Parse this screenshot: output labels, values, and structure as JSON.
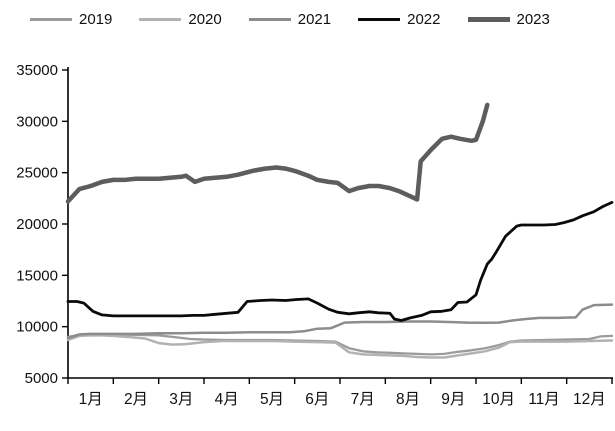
{
  "chart_data": {
    "type": "line",
    "title": "",
    "xlabel": "",
    "ylabel": "",
    "grid": false,
    "legend_position": "top",
    "x_categories": [
      "1月",
      "2月",
      "3月",
      "4月",
      "5月",
      "6月",
      "7月",
      "8月",
      "9月",
      "10月",
      "11月",
      "12月"
    ],
    "y_axis": {
      "min": 5000,
      "max": 35000,
      "tick_step": 5000,
      "ticks": [
        5000,
        10000,
        15000,
        20000,
        25000,
        30000,
        35000
      ]
    },
    "axis_color": "#000000",
    "text_color": "#111111",
    "series": [
      {
        "name": "2019",
        "color": "#9b9b9b",
        "width": 2.3,
        "points": [
          [
            0,
            9000
          ],
          [
            0.25,
            9200
          ],
          [
            0.5,
            9250
          ],
          [
            0.75,
            9250
          ],
          [
            1,
            9250
          ],
          [
            1.5,
            9200
          ],
          [
            2,
            9150
          ],
          [
            2.4,
            8950
          ],
          [
            2.7,
            8800
          ],
          [
            3,
            8750
          ],
          [
            3.5,
            8700
          ],
          [
            4,
            8700
          ],
          [
            4.5,
            8700
          ],
          [
            5,
            8650
          ],
          [
            5.5,
            8600
          ],
          [
            5.9,
            8550
          ],
          [
            6.2,
            7900
          ],
          [
            6.5,
            7600
          ],
          [
            6.8,
            7500
          ],
          [
            7.1,
            7450
          ],
          [
            7.4,
            7400
          ],
          [
            7.7,
            7350
          ],
          [
            8,
            7300
          ],
          [
            8.3,
            7350
          ],
          [
            8.6,
            7550
          ],
          [
            8.9,
            7700
          ],
          [
            9.2,
            7900
          ],
          [
            9.5,
            8200
          ],
          [
            9.75,
            8550
          ],
          [
            10,
            8650
          ],
          [
            10.5,
            8700
          ],
          [
            11,
            8750
          ],
          [
            11.5,
            8800
          ],
          [
            11.75,
            9050
          ],
          [
            12,
            9100
          ]
        ]
      },
      {
        "name": "2020",
        "color": "#b2b2b2",
        "width": 2.5,
        "points": [
          [
            0,
            8700
          ],
          [
            0.25,
            9100
          ],
          [
            0.5,
            9150
          ],
          [
            0.75,
            9150
          ],
          [
            1,
            9100
          ],
          [
            1.3,
            9000
          ],
          [
            1.7,
            8850
          ],
          [
            2,
            8400
          ],
          [
            2.3,
            8250
          ],
          [
            2.6,
            8300
          ],
          [
            3,
            8500
          ],
          [
            3.4,
            8600
          ],
          [
            4,
            8600
          ],
          [
            4.5,
            8600
          ],
          [
            5,
            8550
          ],
          [
            5.5,
            8500
          ],
          [
            5.9,
            8450
          ],
          [
            6.2,
            7500
          ],
          [
            6.5,
            7300
          ],
          [
            6.8,
            7250
          ],
          [
            7.1,
            7200
          ],
          [
            7.4,
            7150
          ],
          [
            7.7,
            7050
          ],
          [
            8,
            7000
          ],
          [
            8.3,
            7000
          ],
          [
            8.6,
            7200
          ],
          [
            8.9,
            7400
          ],
          [
            9.2,
            7600
          ],
          [
            9.5,
            7950
          ],
          [
            9.75,
            8500
          ],
          [
            10,
            8550
          ],
          [
            10.5,
            8550
          ],
          [
            11,
            8550
          ],
          [
            11.5,
            8600
          ],
          [
            12,
            8650
          ]
        ]
      },
      {
        "name": "2021",
        "color": "#8c8c8c",
        "width": 2.5,
        "points": [
          [
            0,
            8900
          ],
          [
            0.25,
            9250
          ],
          [
            0.5,
            9300
          ],
          [
            1,
            9300
          ],
          [
            1.5,
            9300
          ],
          [
            2,
            9350
          ],
          [
            2.5,
            9350
          ],
          [
            3,
            9400
          ],
          [
            3.5,
            9400
          ],
          [
            4,
            9450
          ],
          [
            4.5,
            9450
          ],
          [
            4.9,
            9450
          ],
          [
            5.2,
            9550
          ],
          [
            5.5,
            9800
          ],
          [
            5.8,
            9850
          ],
          [
            6.1,
            10400
          ],
          [
            6.5,
            10450
          ],
          [
            7,
            10450
          ],
          [
            7.5,
            10500
          ],
          [
            8,
            10500
          ],
          [
            8.4,
            10450
          ],
          [
            8.8,
            10400
          ],
          [
            9.2,
            10380
          ],
          [
            9.5,
            10400
          ],
          [
            9.8,
            10600
          ],
          [
            10.1,
            10750
          ],
          [
            10.4,
            10850
          ],
          [
            10.8,
            10850
          ],
          [
            11.2,
            10900
          ],
          [
            11.35,
            11650
          ],
          [
            11.6,
            12100
          ],
          [
            12,
            12150
          ]
        ]
      },
      {
        "name": "2022",
        "color": "#0a0a0a",
        "width": 2.8,
        "points": [
          [
            0,
            12450
          ],
          [
            0.2,
            12450
          ],
          [
            0.35,
            12300
          ],
          [
            0.55,
            11500
          ],
          [
            0.75,
            11150
          ],
          [
            1,
            11050
          ],
          [
            1.5,
            11050
          ],
          [
            2,
            11050
          ],
          [
            2.5,
            11050
          ],
          [
            2.75,
            11100
          ],
          [
            3,
            11100
          ],
          [
            3.25,
            11200
          ],
          [
            3.5,
            11300
          ],
          [
            3.75,
            11400
          ],
          [
            3.95,
            12450
          ],
          [
            4.1,
            12500
          ],
          [
            4.25,
            12550
          ],
          [
            4.5,
            12600
          ],
          [
            4.8,
            12550
          ],
          [
            5.05,
            12650
          ],
          [
            5.3,
            12700
          ],
          [
            5.5,
            12300
          ],
          [
            5.75,
            11700
          ],
          [
            5.95,
            11400
          ],
          [
            6.2,
            11250
          ],
          [
            6.4,
            11350
          ],
          [
            6.65,
            11450
          ],
          [
            6.85,
            11350
          ],
          [
            7.1,
            11300
          ],
          [
            7.2,
            10750
          ],
          [
            7.35,
            10600
          ],
          [
            7.55,
            10850
          ],
          [
            7.8,
            11100
          ],
          [
            8,
            11450
          ],
          [
            8.25,
            11500
          ],
          [
            8.45,
            11650
          ],
          [
            8.6,
            12350
          ],
          [
            8.8,
            12400
          ],
          [
            9,
            13100
          ],
          [
            9.1,
            14500
          ],
          [
            9.25,
            16100
          ],
          [
            9.35,
            16600
          ],
          [
            9.45,
            17300
          ],
          [
            9.65,
            18800
          ],
          [
            9.9,
            19800
          ],
          [
            10,
            19900
          ],
          [
            10.25,
            19900
          ],
          [
            10.5,
            19900
          ],
          [
            10.75,
            19950
          ],
          [
            10.95,
            20150
          ],
          [
            11.15,
            20400
          ],
          [
            11.35,
            20800
          ],
          [
            11.6,
            21200
          ],
          [
            11.8,
            21700
          ],
          [
            12,
            22100
          ]
        ]
      },
      {
        "name": "2023",
        "color": "#5d5d5d",
        "width": 4.5,
        "points": [
          [
            0,
            22200
          ],
          [
            0.25,
            23400
          ],
          [
            0.5,
            23700
          ],
          [
            0.75,
            24100
          ],
          [
            1,
            24300
          ],
          [
            1.25,
            24300
          ],
          [
            1.5,
            24400
          ],
          [
            1.75,
            24400
          ],
          [
            2,
            24400
          ],
          [
            2.25,
            24500
          ],
          [
            2.5,
            24600
          ],
          [
            2.6,
            24700
          ],
          [
            2.8,
            24100
          ],
          [
            3,
            24400
          ],
          [
            3.25,
            24500
          ],
          [
            3.5,
            24600
          ],
          [
            3.75,
            24800
          ],
          [
            4.1,
            25200
          ],
          [
            4.35,
            25400
          ],
          [
            4.6,
            25500
          ],
          [
            4.8,
            25400
          ],
          [
            5.05,
            25100
          ],
          [
            5.3,
            24700
          ],
          [
            5.5,
            24300
          ],
          [
            5.75,
            24100
          ],
          [
            5.95,
            24000
          ],
          [
            6.2,
            23200
          ],
          [
            6.4,
            23500
          ],
          [
            6.65,
            23700
          ],
          [
            6.85,
            23700
          ],
          [
            7.1,
            23500
          ],
          [
            7.3,
            23200
          ],
          [
            7.55,
            22700
          ],
          [
            7.7,
            22400
          ],
          [
            7.78,
            26100
          ],
          [
            8,
            27200
          ],
          [
            8.25,
            28300
          ],
          [
            8.45,
            28500
          ],
          [
            8.65,
            28300
          ],
          [
            8.9,
            28100
          ],
          [
            9,
            28200
          ],
          [
            9.15,
            30000
          ],
          [
            9.25,
            31600
          ]
        ]
      }
    ]
  }
}
